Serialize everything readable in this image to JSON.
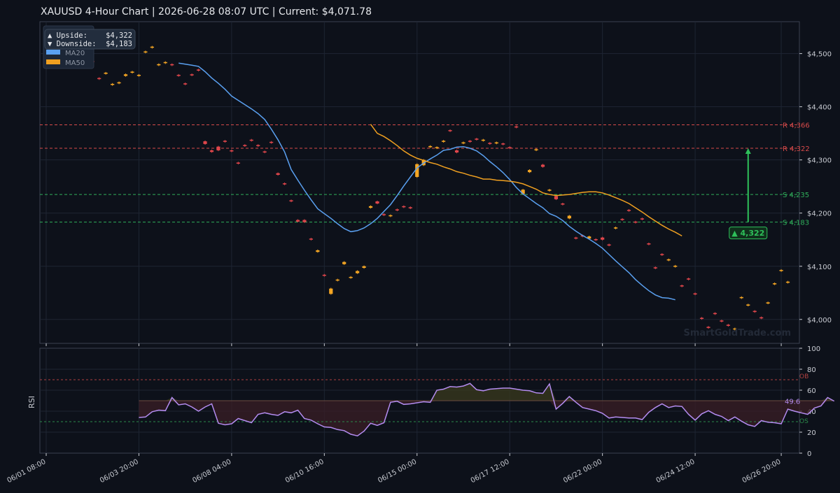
{
  "title": "XAUUSD  4-Hour Chart  |  2026-06-28 08:07 UTC  |  Current: $4,071.78",
  "watermark": "SmartGoldTrade.com",
  "colors": {
    "background": "#0d111a",
    "panel": "#0d111a",
    "grid": "#1e2533",
    "axis": "#3a4150",
    "text": "#c9ccd3",
    "bull": "#f5a623",
    "bear": "#e0464b",
    "ma20": "#5aa0f0",
    "ma50": "#f0a020",
    "resistance": "#d84a4a",
    "support": "#2fae5a",
    "target": "#2ec05a",
    "rsi": "#b48cf0",
    "ob": "#b04040",
    "os": "#2a8a4a"
  },
  "legend": {
    "upside_label": "▲ Upside:",
    "upside_value": "$4,322",
    "downside_label": "▼ Downside:",
    "downside_value": "$4,183",
    "ma20_label": "MA20",
    "ma50_label": "MA50"
  },
  "chart_data": [
    {
      "type": "candlestick",
      "title": "XAUUSD  4-Hour Chart  |  2026-06-28 08:07 UTC  |  Current: $4,071.78",
      "x_ticks": [
        "06/01 08:00",
        "06/03 20:00",
        "06/08 04:00",
        "06/10 16:00",
        "06/15 00:00",
        "06/17 12:00",
        "06/22 00:00",
        "06/24 12:00",
        "06/26 20:00"
      ],
      "ylim": [
        3955,
        4560
      ],
      "y_ticks": [
        4000,
        4100,
        4200,
        4300,
        4400,
        4500
      ],
      "y_tick_labels": [
        "$4,000",
        "$4,100",
        "$4,200",
        "$4,300",
        "$4,400",
        "$4,500"
      ],
      "grid": true,
      "candles": [
        {
          "o": 4488,
          "c": 4480
        },
        {
          "o": 4484,
          "c": 4481
        },
        {
          "o": 4482,
          "c": 4479
        },
        {
          "o": 4502,
          "c": 4497
        },
        {
          "o": 4506,
          "c": 4501
        },
        {
          "o": 4490,
          "c": 4488
        },
        {
          "o": 4476,
          "c": 4474
        },
        {
          "o": 4486,
          "c": 4484
        },
        {
          "o": 4454,
          "c": 4452
        },
        {
          "o": 4462,
          "c": 4464
        },
        {
          "o": 4441,
          "c": 4443
        },
        {
          "o": 4444,
          "c": 4446
        },
        {
          "o": 4458,
          "c": 4461
        },
        {
          "o": 4464,
          "c": 4466
        },
        {
          "o": 4458,
          "c": 4460
        },
        {
          "o": 4502,
          "c": 4504
        },
        {
          "o": 4511,
          "c": 4513
        },
        {
          "o": 4478,
          "c": 4480
        },
        {
          "o": 4482,
          "c": 4484
        },
        {
          "o": 4480,
          "c": 4478
        },
        {
          "o": 4460,
          "c": 4458
        },
        {
          "o": 4444,
          "c": 4442
        },
        {
          "o": 4461,
          "c": 4459
        },
        {
          "o": 4470,
          "c": 4468
        },
        {
          "o": 4335,
          "c": 4330
        },
        {
          "o": 4318,
          "c": 4315
        },
        {
          "o": 4325,
          "c": 4318
        },
        {
          "o": 4336,
          "c": 4334
        },
        {
          "o": 4318,
          "c": 4316
        },
        {
          "o": 4295,
          "c": 4293
        },
        {
          "o": 4328,
          "c": 4326
        },
        {
          "o": 4338,
          "c": 4336
        },
        {
          "o": 4328,
          "c": 4326
        },
        {
          "o": 4316,
          "c": 4314
        },
        {
          "o": 4334,
          "c": 4332
        },
        {
          "o": 4275,
          "c": 4272
        },
        {
          "o": 4256,
          "c": 4254
        },
        {
          "o": 4224,
          "c": 4222
        },
        {
          "o": 4187,
          "c": 4184
        },
        {
          "o": 4187,
          "c": 4183
        },
        {
          "o": 4152,
          "c": 4150
        },
        {
          "o": 4127,
          "c": 4130
        },
        {
          "o": 4084,
          "c": 4082
        },
        {
          "o": 4048,
          "c": 4058
        },
        {
          "o": 4073,
          "c": 4075
        },
        {
          "o": 4104,
          "c": 4108
        },
        {
          "o": 4078,
          "c": 4080
        },
        {
          "o": 4087,
          "c": 4091
        },
        {
          "o": 4097,
          "c": 4100
        },
        {
          "o": 4210,
          "c": 4213
        },
        {
          "o": 4222,
          "c": 4218
        },
        {
          "o": 4198,
          "c": 4196
        },
        {
          "o": 4194,
          "c": 4196
        },
        {
          "o": 4207,
          "c": 4205
        },
        {
          "o": 4213,
          "c": 4211
        },
        {
          "o": 4211,
          "c": 4209
        },
        {
          "o": 4268,
          "c": 4292
        },
        {
          "o": 4290,
          "c": 4300
        },
        {
          "o": 4324,
          "c": 4326
        },
        {
          "o": 4322,
          "c": 4324
        },
        {
          "o": 4334,
          "c": 4336
        },
        {
          "o": 4356,
          "c": 4354
        },
        {
          "o": 4318,
          "c": 4314
        },
        {
          "o": 4331,
          "c": 4333
        },
        {
          "o": 4336,
          "c": 4334
        },
        {
          "o": 4340,
          "c": 4338
        },
        {
          "o": 4336,
          "c": 4338
        },
        {
          "o": 4332,
          "c": 4330
        },
        {
          "o": 4331,
          "c": 4333
        },
        {
          "o": 4331,
          "c": 4329
        },
        {
          "o": 4324,
          "c": 4322
        },
        {
          "o": 4363,
          "c": 4361
        },
        {
          "o": 4236,
          "c": 4244
        },
        {
          "o": 4277,
          "c": 4281
        },
        {
          "o": 4318,
          "c": 4320
        },
        {
          "o": 4291,
          "c": 4287
        },
        {
          "o": 4242,
          "c": 4244
        },
        {
          "o": 4232,
          "c": 4226
        },
        {
          "o": 4218,
          "c": 4216
        },
        {
          "o": 4190,
          "c": 4195
        },
        {
          "o": 4154,
          "c": 4152
        },
        {
          "o": 4158,
          "c": 4156
        },
        {
          "o": 4152,
          "c": 4156
        },
        {
          "o": 4151,
          "c": 4149
        },
        {
          "o": 4154,
          "c": 4150
        },
        {
          "o": 4141,
          "c": 4139
        },
        {
          "o": 4171,
          "c": 4173
        },
        {
          "o": 4189,
          "c": 4187
        },
        {
          "o": 4206,
          "c": 4204
        },
        {
          "o": 4184,
          "c": 4182
        },
        {
          "o": 4190,
          "c": 4188
        },
        {
          "o": 4143,
          "c": 4141
        },
        {
          "o": 4098,
          "c": 4096
        },
        {
          "o": 4123,
          "c": 4121
        },
        {
          "o": 4111,
          "c": 4113
        },
        {
          "o": 4099,
          "c": 4101
        },
        {
          "o": 4064,
          "c": 4062
        },
        {
          "o": 4077,
          "c": 4075
        },
        {
          "o": 4049,
          "c": 4047
        },
        {
          "o": 4003,
          "c": 4001
        },
        {
          "o": 3986,
          "c": 3984
        },
        {
          "o": 4012,
          "c": 4010
        },
        {
          "o": 3998,
          "c": 3996
        },
        {
          "o": 3990,
          "c": 3988
        },
        {
          "o": 3981,
          "c": 3983
        },
        {
          "o": 4040,
          "c": 4042
        },
        {
          "o": 4026,
          "c": 4028
        },
        {
          "o": 4016,
          "c": 4014
        },
        {
          "o": 4004,
          "c": 4002
        },
        {
          "o": 4030,
          "c": 4032
        },
        {
          "o": 4066,
          "c": 4068
        },
        {
          "o": 4091,
          "c": 4093
        },
        {
          "o": 4069,
          "c": 4071
        }
      ],
      "series": [
        {
          "name": "MA20",
          "color": "#5aa0f0",
          "start_index": 20,
          "values": [
            4482,
            4480,
            4478,
            4476,
            4466,
            4454,
            4444,
            4433,
            4420,
            4412,
            4404,
            4396,
            4387,
            4376,
            4358,
            4338,
            4315,
            4282,
            4262,
            4243,
            4225,
            4208,
            4199,
            4190,
            4180,
            4171,
            4165,
            4167,
            4172,
            4180,
            4190,
            4203,
            4216,
            4233,
            4251,
            4268,
            4285,
            4294,
            4302,
            4309,
            4318,
            4320,
            4324,
            4325,
            4322,
            4317,
            4308,
            4297,
            4287,
            4276,
            4263,
            4248,
            4236,
            4227,
            4218,
            4210,
            4199,
            4194,
            4186,
            4175,
            4166,
            4158,
            4151,
            4143,
            4134,
            4122,
            4110,
            4099,
            4088,
            4075,
            4064,
            4054,
            4046,
            4041,
            4040,
            4037
          ]
        },
        {
          "name": "MA50",
          "color": "#f0a020",
          "start_index": 49,
          "values": [
            4367,
            4350,
            4344,
            4336,
            4327,
            4317,
            4309,
            4303,
            4299,
            4295,
            4292,
            4287,
            4283,
            4278,
            4275,
            4271,
            4268,
            4264,
            4264,
            4262,
            4261,
            4260,
            4258,
            4255,
            4250,
            4245,
            4238,
            4235,
            4233,
            4234,
            4235,
            4237,
            4239,
            4240,
            4240,
            4238,
            4234,
            4229,
            4224,
            4218,
            4210,
            4202,
            4193,
            4185,
            4177,
            4170,
            4164,
            4157
          ]
        }
      ],
      "levels": [
        {
          "label": "R 4,366",
          "value": 4366,
          "kind": "resistance"
        },
        {
          "label": "R 4,322",
          "value": 4322,
          "kind": "resistance"
        },
        {
          "label": "S 4,235",
          "value": 4235,
          "kind": "support"
        },
        {
          "label": "S 4,183",
          "value": 4183,
          "kind": "support"
        }
      ],
      "annotation": {
        "label": "▲ 4,322",
        "from": 4183,
        "to": 4322,
        "at_index": 106
      }
    },
    {
      "type": "line",
      "ylabel": "RSI",
      "ylim": [
        0,
        100
      ],
      "y_ticks": [
        0,
        20,
        40,
        60,
        80,
        100
      ],
      "ob_level": 70,
      "ob_label": "OB",
      "os_level": 30,
      "os_label": "OS",
      "mid_level": 50,
      "last_label": "49.6",
      "series": [
        {
          "name": "RSI",
          "color": "#b48cf0",
          "start_index": 14,
          "values": [
            34,
            34.5,
            39.5,
            41,
            40.5,
            53,
            46,
            47,
            44,
            40,
            44,
            47,
            28.5,
            27,
            28,
            33,
            31,
            29,
            37,
            38.5,
            37,
            36,
            39.5,
            38.5,
            41,
            33,
            31.5,
            28,
            25,
            24.5,
            22.5,
            21.5,
            18,
            16.5,
            21,
            28.5,
            26.5,
            29,
            48.5,
            49.5,
            46.5,
            47,
            48,
            49,
            48.5,
            60,
            61,
            63.5,
            63,
            64,
            66.5,
            60.5,
            59.5,
            61,
            61.5,
            62,
            62,
            61,
            60,
            59.5,
            57.5,
            57,
            66,
            42,
            47.5,
            54,
            48.5,
            43.5,
            42,
            40.5,
            38,
            33.5,
            34.5,
            34,
            33.5,
            33.5,
            32,
            39,
            43.5,
            47,
            43.5,
            45,
            44.5,
            37,
            31.5,
            37.5,
            40.5,
            37,
            35,
            31,
            34.5,
            30.5,
            27,
            25.5,
            31,
            29.5,
            29,
            28,
            42,
            40,
            38.5,
            37,
            43,
            45,
            53,
            49.6
          ]
        }
      ]
    }
  ]
}
